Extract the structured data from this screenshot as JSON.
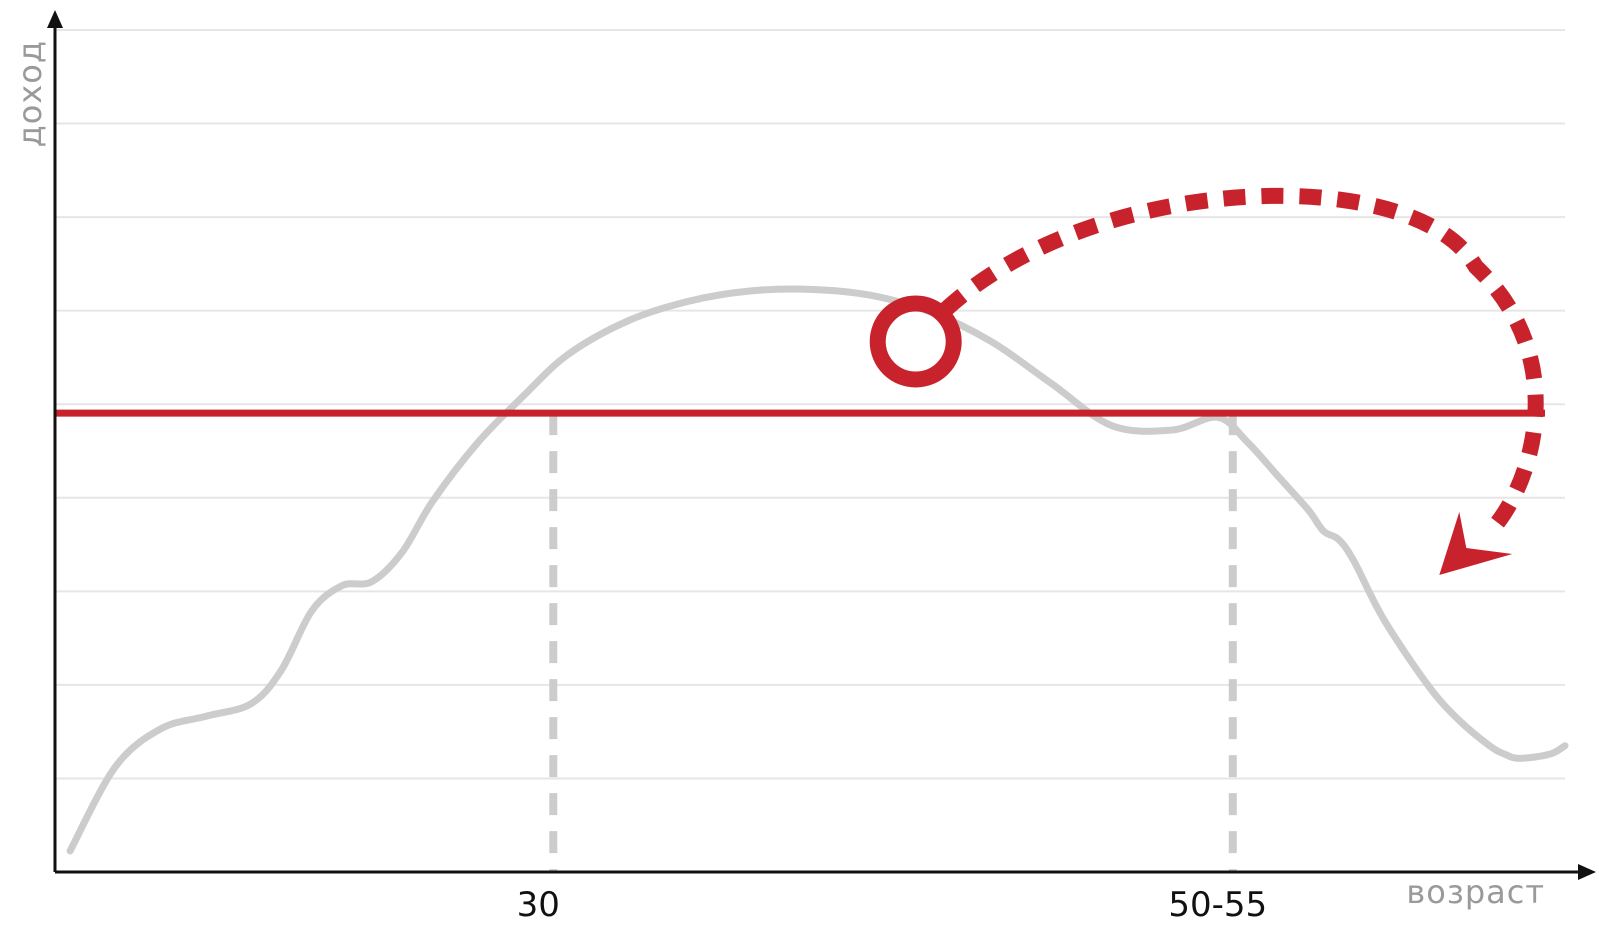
{
  "chart_data": {
    "type": "line",
    "xlabel": "возраст",
    "ylabel": "доход",
    "x_ticks": [
      "30",
      "50-55"
    ],
    "grid": true,
    "xlim": [
      0,
      100
    ],
    "ylim": [
      0,
      100
    ],
    "series": [
      {
        "x": [
          1,
          4,
          7,
          10,
          13,
          15,
          17,
          19,
          21,
          23,
          25,
          28,
          31,
          34,
          38,
          42,
          46,
          50,
          54,
          58,
          62,
          66,
          70,
          74,
          77,
          79,
          81,
          83,
          84,
          85,
          86,
          88,
          91,
          93,
          95,
          96,
          97,
          99,
          100
        ],
        "y": [
          2.5,
          12.5,
          17.0,
          18.5,
          20.0,
          24.0,
          31.0,
          34.0,
          34.5,
          38.0,
          44.0,
          51.0,
          56.5,
          61.5,
          65.5,
          67.8,
          69.0,
          69.2,
          68.5,
          66.5,
          63.0,
          58.0,
          53.0,
          52.5,
          54.0,
          51.0,
          47.0,
          43.0,
          40.5,
          39.5,
          37.0,
          30.0,
          22.0,
          18.0,
          15.0,
          14.0,
          13.5,
          14.0,
          15.0
        ],
        "color": "#cccccc"
      }
    ],
    "threshold": {
      "y": 54.5,
      "color": "#c8232c"
    },
    "dashed_guides": [
      {
        "x": 33
      },
      {
        "x": 78
      }
    ],
    "annotation": {
      "type": "dotted-arrow",
      "from": {
        "x": 57,
        "y": 63
      },
      "to": {
        "x": 93,
        "y": 38
      },
      "color": "#c8232c"
    }
  }
}
